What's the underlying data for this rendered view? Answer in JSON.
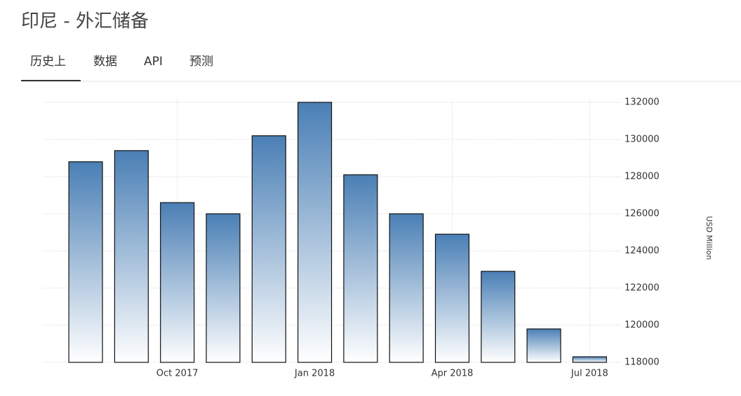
{
  "header": {
    "title": "印尼 - 外汇储备"
  },
  "tabs": [
    "历史上",
    "数据",
    "API",
    "预测"
  ],
  "chart_data": {
    "type": "bar",
    "categories": [
      null,
      null,
      "Oct 2017",
      null,
      null,
      "Jan 2018",
      null,
      null,
      "Apr 2018",
      null,
      null,
      "Jul 2018"
    ],
    "values": [
      128800,
      129400,
      126600,
      126000,
      130200,
      132000,
      128100,
      126000,
      124900,
      122900,
      119800,
      118300
    ],
    "color": "#4a7fb5",
    "ylim": [
      118000,
      132000
    ],
    "yticks": [
      118000,
      120000,
      122000,
      124000,
      126000,
      128000,
      130000,
      132000
    ],
    "y_label": "USD Million",
    "grid": true
  }
}
